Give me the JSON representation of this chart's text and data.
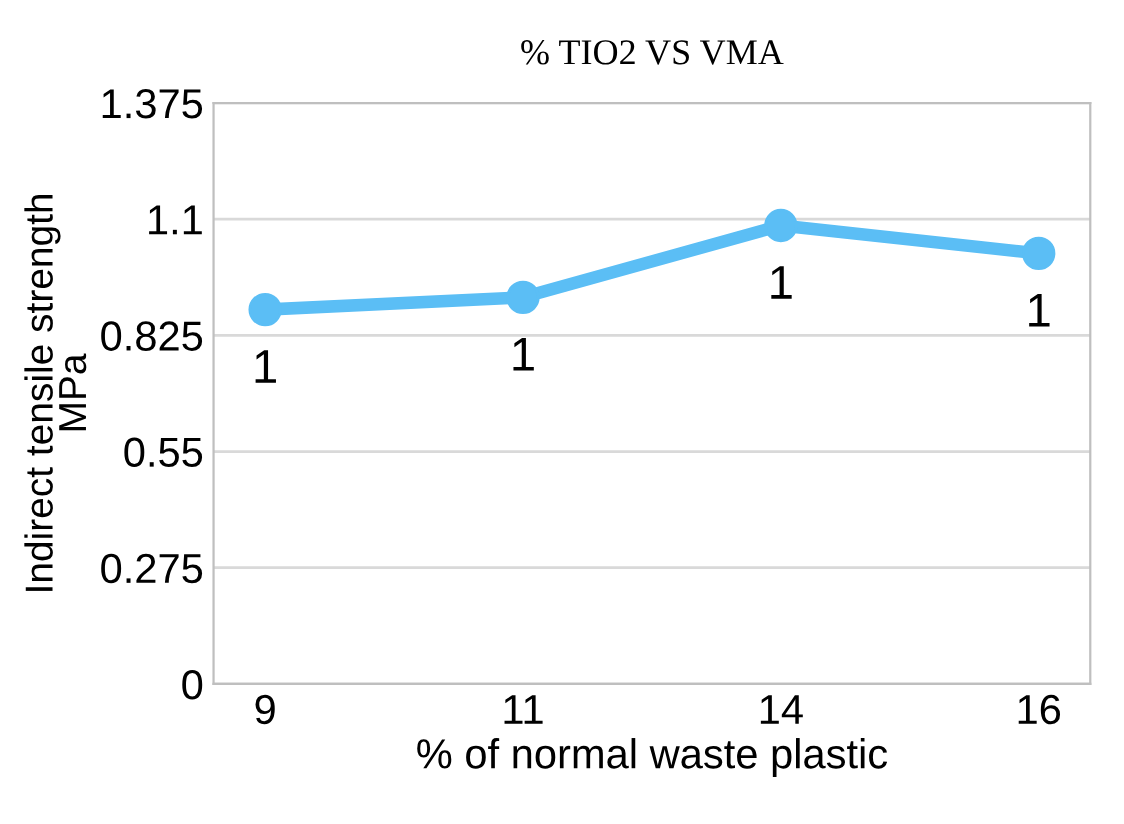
{
  "chart_data": {
    "type": "line",
    "title": "% TIO2 VS VMA",
    "xlabel": "% of normal waste plastic",
    "ylabel": "Indirect tensile strength\nMPa",
    "categories": [
      "9",
      "11",
      "14",
      "16"
    ],
    "series": [
      {
        "color": "#5bbef5",
        "values": [
          0.886,
          0.915,
          1.085,
          1.019
        ],
        "value_labels": [
          "1",
          "1",
          "1",
          "1"
        ]
      }
    ],
    "ylim": [
      0,
      1.375
    ],
    "yticks": [
      0,
      0.275,
      0.55,
      0.825,
      1.1,
      1.375
    ],
    "grid": "y",
    "marker": "circle",
    "line_style": "solid",
    "legend": false
  }
}
